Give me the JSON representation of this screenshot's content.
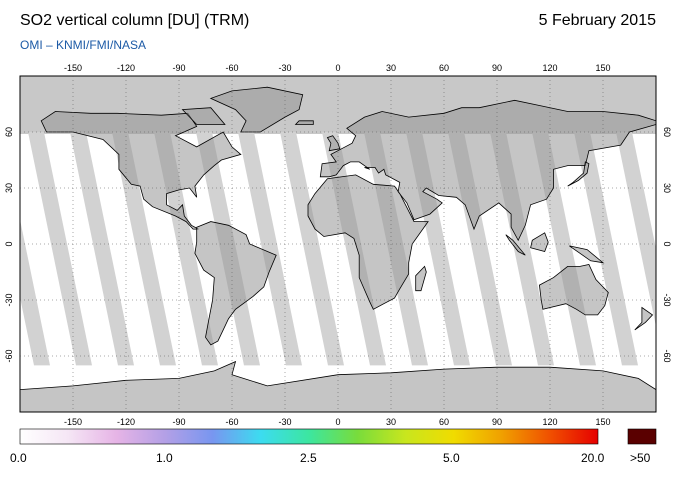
{
  "header": {
    "title": "SO2 vertical column [DU] (TRM)",
    "date": "5 February 2015",
    "credit": "OMI  –  KNMI/FMI/NASA"
  },
  "map": {
    "lon_ticks": [
      -150,
      -120,
      -90,
      -60,
      -30,
      0,
      30,
      60,
      90,
      120,
      150
    ],
    "lat_ticks": [
      60,
      30,
      0,
      -30,
      -60
    ],
    "lon_range": [
      -180,
      180
    ],
    "lat_range": [
      -90,
      90
    ],
    "colors": {
      "land_gap": "#b0b0b0",
      "ocean_gap": "#d2d2d2",
      "polar": "#c8c8c8",
      "coast": "#000000"
    }
  },
  "colorbar": {
    "labels": [
      "0.0",
      "1.0",
      "2.5",
      "5.0",
      "20.0",
      ">50"
    ],
    "gradient": [
      "#ffffff",
      "#f5e6f5",
      "#e6b4e6",
      "#b4a0e6",
      "#7896f0",
      "#3cdcf0",
      "#3ce6a0",
      "#78dc3c",
      "#c8e61e",
      "#f0dc00",
      "#f0a000",
      "#f05000",
      "#e60000"
    ],
    "overflow_color": "#5a0000"
  }
}
